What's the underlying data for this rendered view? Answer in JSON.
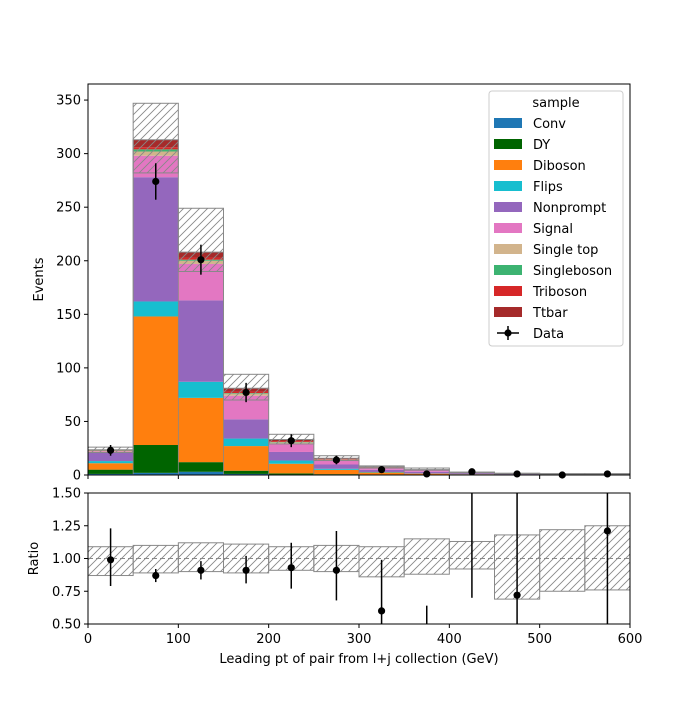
{
  "chart_data": [
    {
      "type": "bar",
      "stacked": true,
      "histogram": true,
      "bin_edges": [
        0,
        50,
        100,
        150,
        200,
        250,
        300,
        350,
        400,
        450,
        500,
        550,
        600
      ],
      "xlim": [
        0,
        600
      ],
      "ylim": [
        0,
        365
      ],
      "ylabel": "Events",
      "yticks": [
        0,
        50,
        100,
        150,
        200,
        250,
        300,
        350
      ],
      "legend": {
        "title": "sample",
        "placement": "top-right"
      },
      "series": [
        {
          "name": "Conv",
          "color": "#1f77b4",
          "values": [
            1,
            2,
            3,
            1,
            0.5,
            0.3,
            0.1,
            0,
            0,
            0,
            0,
            0
          ]
        },
        {
          "name": "DY",
          "color": "#006400",
          "values": [
            4,
            26,
            9,
            3,
            1,
            0.5,
            0.2,
            0.1,
            0,
            0,
            0,
            0
          ]
        },
        {
          "name": "Diboson",
          "color": "#ff7f0e",
          "values": [
            6,
            120,
            60,
            23,
            9,
            4,
            2,
            1.2,
            0.7,
            0.5,
            0.3,
            0.3
          ]
        },
        {
          "name": "Flips",
          "color": "#17becf",
          "values": [
            2,
            14,
            15,
            7,
            3,
            1,
            0.5,
            0.2,
            0.1,
            0,
            0,
            0
          ]
        },
        {
          "name": "Nonprompt",
          "color": "#9467bd",
          "values": [
            8,
            116,
            76,
            18,
            8,
            4,
            2,
            1.5,
            0.8,
            0.4,
            0.3,
            0.2
          ]
        },
        {
          "name": "Signal",
          "color": "#e377c2",
          "values": [
            1,
            20,
            34,
            22,
            8,
            4,
            2,
            1.5,
            0.7,
            0.4,
            0.2,
            0.2
          ]
        },
        {
          "name": "Single top",
          "color": "#d2b48c",
          "values": [
            0.5,
            4,
            3,
            2,
            1,
            0.5,
            0.2,
            0.1,
            0.1,
            0,
            0,
            0
          ]
        },
        {
          "name": "Singleboson",
          "color": "#3cb371",
          "values": [
            0.3,
            2,
            1,
            0.5,
            0.3,
            0.1,
            0.1,
            0,
            0,
            0,
            0,
            0
          ]
        },
        {
          "name": "Triboson",
          "color": "#d62728",
          "values": [
            0.3,
            2,
            2,
            1.5,
            0.8,
            0.4,
            0.2,
            0.1,
            0.1,
            0.1,
            0,
            0
          ]
        },
        {
          "name": "Ttbar",
          "color": "#a52a2a",
          "values": [
            0.5,
            7,
            5,
            3,
            1.5,
            0.8,
            0.4,
            0.3,
            0.2,
            0.1,
            0.1,
            0.1
          ]
        }
      ],
      "uncertainty": {
        "up": [
          26,
          347,
          249,
          94,
          38,
          18,
          8.5,
          6.5,
          2.6,
          1.6,
          1.3,
          1.3
        ],
        "down": [
          21,
          282,
          190,
          70,
          29,
          13.5,
          6.5,
          4.5,
          2.0,
          1.2,
          0.8,
          0.8
        ]
      },
      "data": {
        "name": "Data",
        "x": [
          25,
          75,
          125,
          175,
          225,
          275,
          325,
          375,
          425,
          475,
          525,
          575
        ],
        "y": [
          23,
          274,
          201,
          77,
          32,
          14,
          5,
          1,
          3,
          1,
          0,
          1
        ],
        "err": [
          5,
          17,
          14,
          9,
          6,
          4,
          2.5,
          1.2,
          1.8,
          1.2,
          0,
          1.2
        ]
      }
    },
    {
      "type": "line",
      "ylabel": "Ratio",
      "xlabel": "Leading pt of pair from l+j collection (GeV)",
      "xlim": [
        0,
        600
      ],
      "ylim": [
        0.5,
        1.5
      ],
      "xticks": [
        0,
        100,
        200,
        300,
        400,
        500,
        600
      ],
      "yticks": [
        "0.50",
        "0.75",
        "1.00",
        "1.25",
        "1.50"
      ],
      "reference_line": 1.0,
      "bin_edges": [
        0,
        50,
        100,
        150,
        200,
        250,
        300,
        350,
        400,
        450,
        500,
        550,
        600
      ],
      "band": {
        "up": [
          1.09,
          1.1,
          1.12,
          1.11,
          1.09,
          1.1,
          1.09,
          1.15,
          1.13,
          1.18,
          1.22,
          1.25
        ],
        "down": [
          0.87,
          0.89,
          0.9,
          0.89,
          0.91,
          0.9,
          0.86,
          0.88,
          0.92,
          0.69,
          0.75,
          0.76
        ]
      },
      "points": {
        "x": [
          25,
          75,
          125,
          175,
          225,
          275,
          325,
          375,
          425,
          475,
          525,
          575
        ],
        "y": [
          0.99,
          0.87,
          0.91,
          0.91,
          0.93,
          0.91,
          0.6,
          null,
          null,
          0.72,
          null,
          1.21
        ],
        "err_low": [
          0.2,
          0.05,
          0.07,
          0.1,
          0.16,
          0.23,
          0.4,
          null,
          null,
          0.72,
          null,
          1.21
        ],
        "err_high": [
          0.24,
          0.05,
          0.07,
          0.11,
          0.19,
          0.3,
          0.39,
          null,
          null,
          0.78,
          null,
          0.29
        ]
      },
      "extra_error_bars": [
        {
          "x": 375,
          "low": 0.5,
          "high": 0.64
        },
        {
          "x": 425,
          "low": 0.7,
          "high": 1.5
        }
      ]
    }
  ]
}
